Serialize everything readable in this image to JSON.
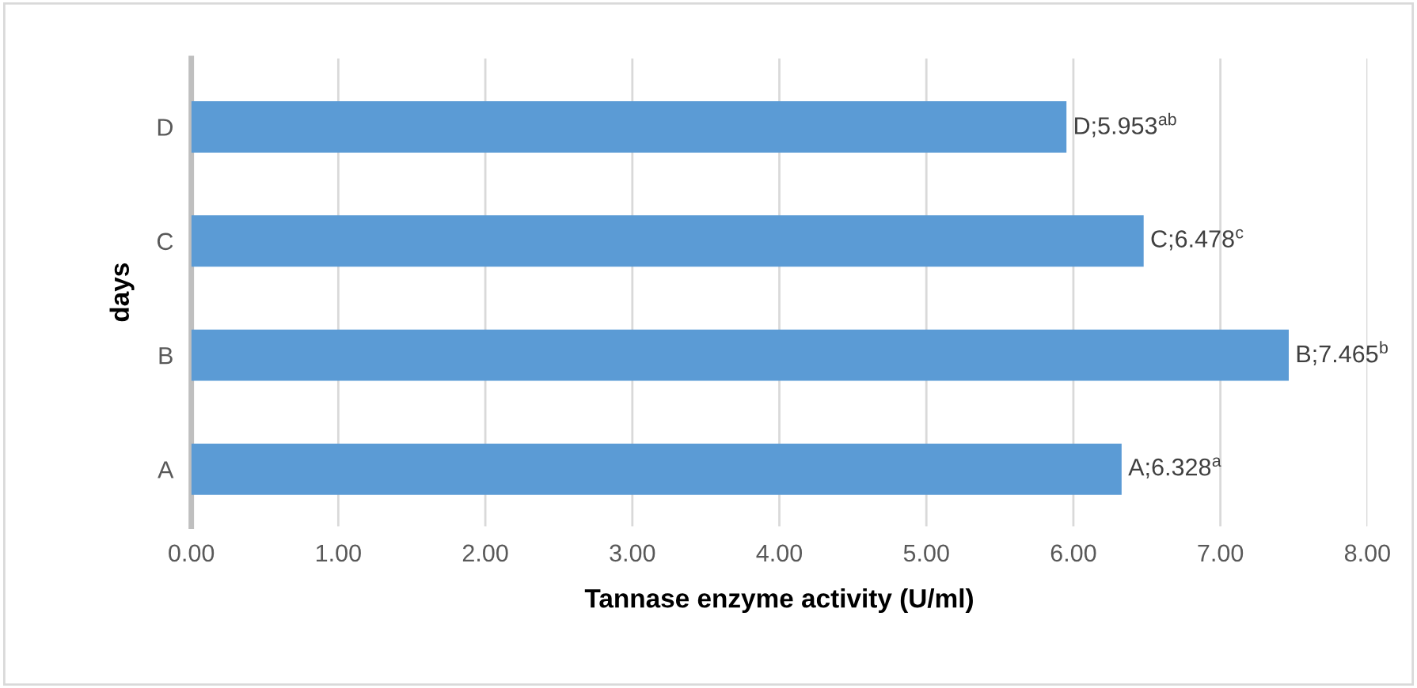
{
  "chart_data": {
    "type": "bar",
    "orientation": "horizontal",
    "xlabel": "Tannase enzyme activity (U/ml)",
    "ylabel": "days",
    "categories": [
      "D",
      "C",
      "B",
      "A"
    ],
    "values": [
      5.953,
      6.478,
      7.465,
      6.328
    ],
    "value_labels": [
      "D;5.953$^{ab}$",
      "C;6.478$^{c}$",
      "B;7.465$^{b}$",
      "A;6.328$^{a}$"
    ],
    "color": "#5b9bd5",
    "xlim": [
      0,
      8
    ],
    "xticks": [
      {
        "value": 0,
        "label": "0.00"
      },
      {
        "value": 1,
        "label": "1.00"
      },
      {
        "value": 2,
        "label": "2.00"
      },
      {
        "value": 3,
        "label": "3.00"
      },
      {
        "value": 4,
        "label": "4.00"
      },
      {
        "value": 5,
        "label": "5.00"
      },
      {
        "value": 6,
        "label": "6.00"
      },
      {
        "value": 7,
        "label": "7.00"
      },
      {
        "value": 8,
        "label": "8.00"
      }
    ],
    "grid": "x"
  }
}
